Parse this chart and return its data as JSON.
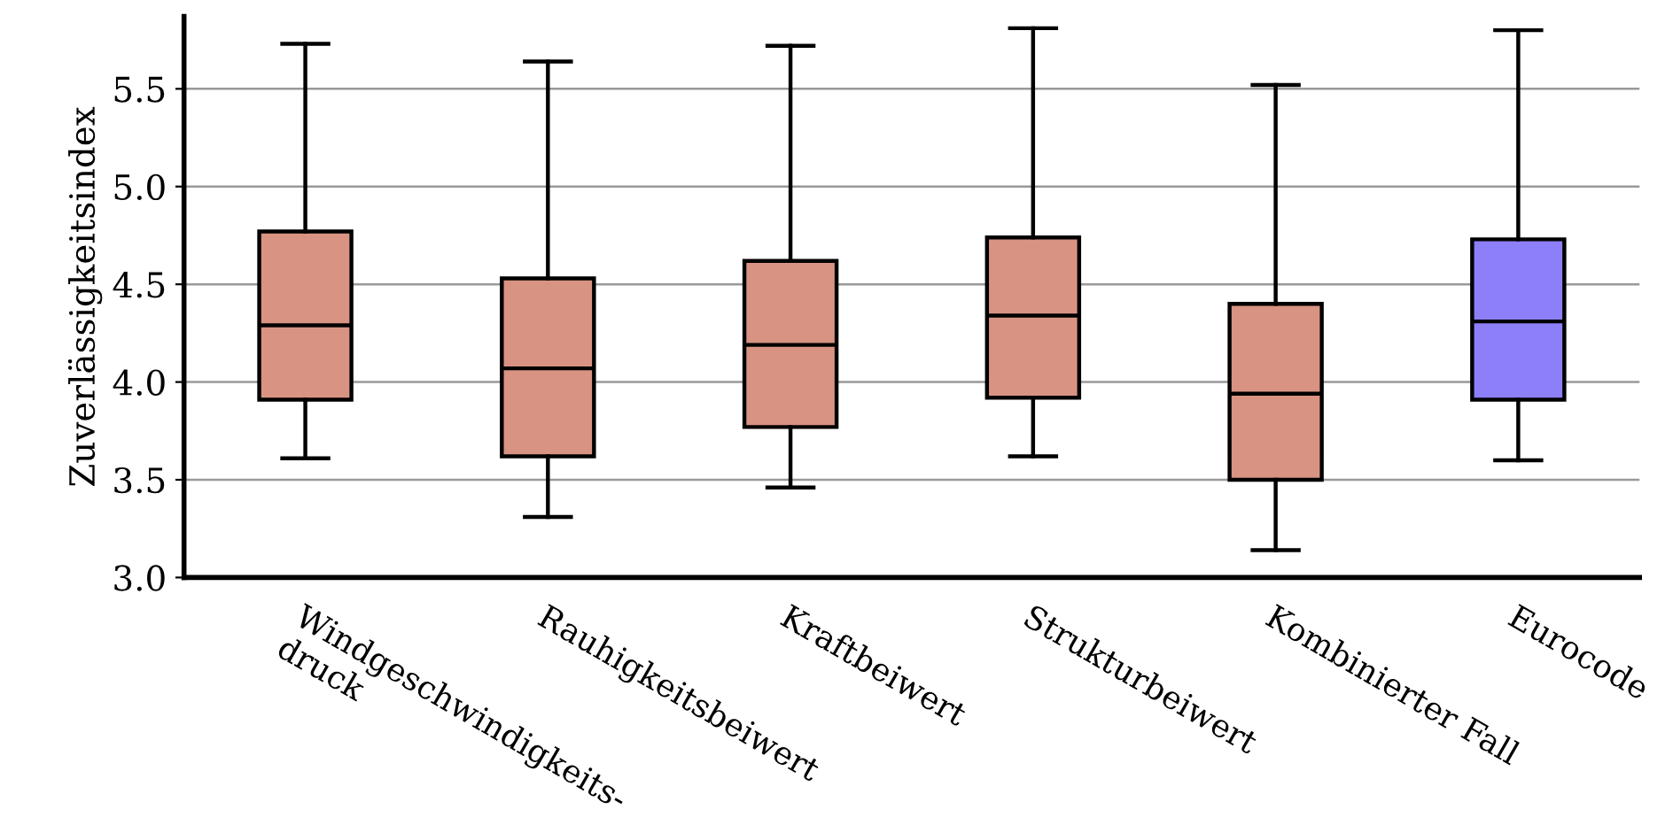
{
  "chart_data": {
    "type": "box",
    "ylabel": "Zuverlässigkeitsindex",
    "categories": [
      "Windgeschwindigkeits-\ndruck",
      "Rauhigkeitsbeiwert",
      "Kraftbeiwert",
      "Strukturbeiwert",
      "Kombinierter Fall",
      "Eurocode"
    ],
    "boxes": [
      {
        "low": 3.61,
        "q1": 3.91,
        "median": 4.29,
        "q3": 4.77,
        "high": 5.73
      },
      {
        "low": 3.31,
        "q1": 3.62,
        "median": 4.07,
        "q3": 4.53,
        "high": 5.64
      },
      {
        "low": 3.46,
        "q1": 3.77,
        "median": 4.19,
        "q3": 4.62,
        "high": 5.72
      },
      {
        "low": 3.62,
        "q1": 3.92,
        "median": 4.34,
        "q3": 4.74,
        "high": 5.81
      },
      {
        "low": 3.14,
        "q1": 3.5,
        "median": 3.94,
        "q3": 4.4,
        "high": 5.52
      },
      {
        "low": 3.6,
        "q1": 3.91,
        "median": 4.31,
        "q3": 4.73,
        "high": 5.8
      }
    ],
    "colors": [
      "#d99383",
      "#d99383",
      "#d99383",
      "#d99383",
      "#d99383",
      "#8c7ff7"
    ],
    "ylim": [
      3.0,
      5.87
    ],
    "yticks": [
      {
        "value": 3.0,
        "label": "3.0"
      },
      {
        "value": 3.5,
        "label": "3.5"
      },
      {
        "value": 4.0,
        "label": "4.0"
      },
      {
        "value": 4.5,
        "label": "4.5"
      },
      {
        "value": 5.0,
        "label": "5.0"
      },
      {
        "value": 5.5,
        "label": "5.5"
      }
    ],
    "grid": "y",
    "legend": false
  }
}
